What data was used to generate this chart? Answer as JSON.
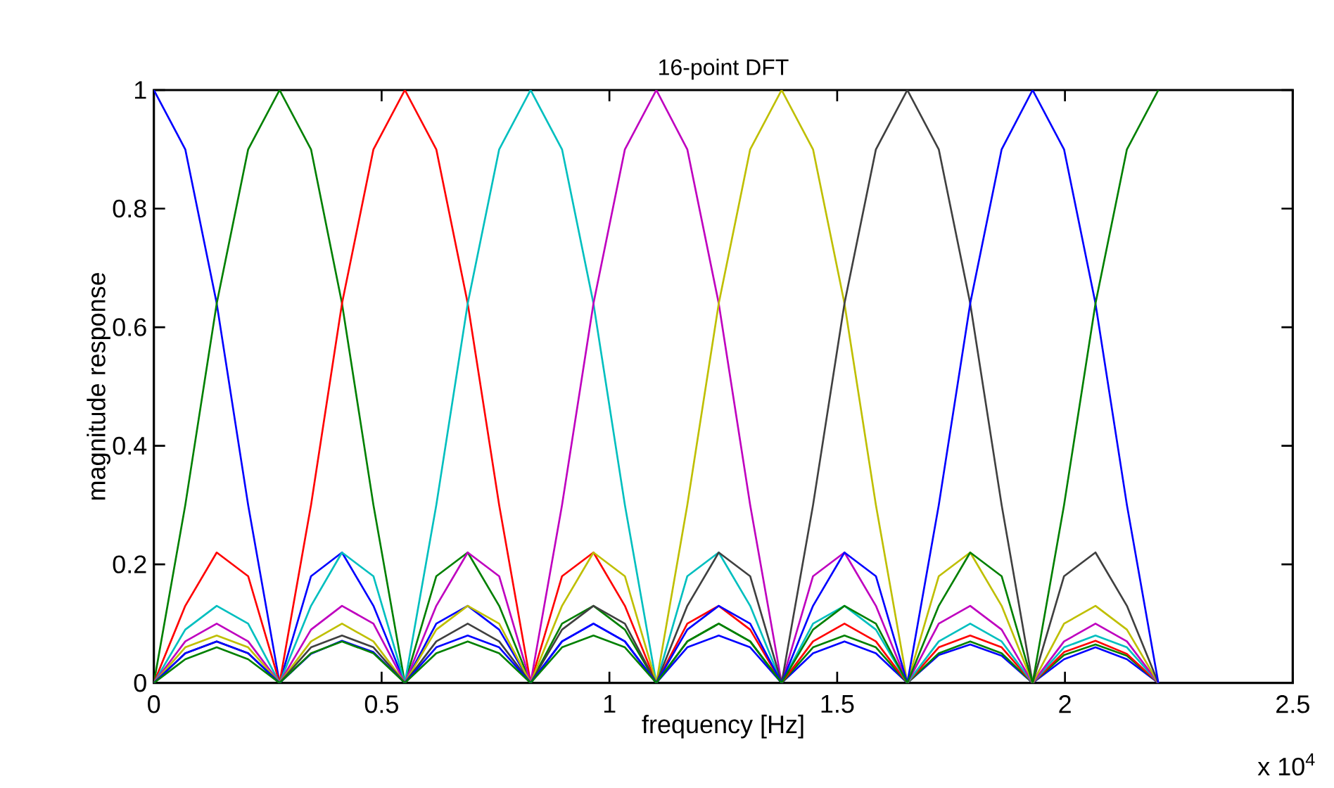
{
  "chart_data": {
    "type": "line",
    "title": "16-point DFT",
    "xlabel": "frequency [Hz]",
    "ylabel": "magnitude response",
    "annotations": [
      "x 10$^{4}$"
    ],
    "x": [
      0,
      0.069,
      0.138,
      0.207,
      0.276,
      0.345,
      0.413,
      0.482,
      0.551,
      0.62,
      0.689,
      0.758,
      0.827,
      0.896,
      0.965,
      1.034,
      1.103,
      1.171,
      1.24,
      1.309,
      1.378,
      1.447,
      1.516,
      1.585,
      1.654,
      1.723,
      1.792,
      1.861,
      1.929,
      1.998,
      2.067,
      2.136,
      2.205
    ],
    "xlim": [
      0,
      2.5
    ],
    "xticks": [
      0,
      0.5,
      1,
      1.5,
      2,
      2.5
    ],
    "ylim": [
      0,
      1
    ],
    "yticks": [
      0,
      0.2,
      0.4,
      0.6,
      0.8,
      1
    ],
    "grid": false,
    "marker": "none",
    "line_style": "solid",
    "series": [
      {
        "color": "#0000ff",
        "values": [
          1,
          0.9,
          0.64,
          0.3,
          0,
          0.18,
          0.22,
          0.13,
          0,
          0.1,
          0.13,
          0.09,
          0,
          0.07,
          0.1,
          0.07,
          0,
          0.06,
          0.08,
          0.06,
          0,
          0.05,
          0.07,
          0.05,
          0,
          0.047,
          0.065,
          0.046,
          0,
          0.04,
          0.06,
          0.04,
          0
        ]
      },
      {
        "color": "#008000",
        "values": [
          0,
          0.3,
          0.64,
          0.9,
          1,
          0.9,
          0.64,
          0.3,
          0,
          0.18,
          0.22,
          0.13,
          0,
          0.1,
          0.13,
          0.09,
          0,
          0.07,
          0.1,
          0.07,
          0,
          0.06,
          0.08,
          0.06,
          0,
          0.05,
          0.07,
          0.05,
          0,
          0.047,
          0.065,
          0.046,
          0
        ]
      },
      {
        "color": "#ff0000",
        "values": [
          0,
          0.13,
          0.22,
          0.18,
          0,
          0.3,
          0.64,
          0.9,
          1,
          0.9,
          0.64,
          0.3,
          0,
          0.18,
          0.22,
          0.13,
          0,
          0.1,
          0.13,
          0.09,
          0,
          0.07,
          0.1,
          0.07,
          0,
          0.06,
          0.08,
          0.06,
          0,
          0.052,
          0.071,
          0.049,
          0
        ]
      },
      {
        "color": "#00bfbf",
        "values": [
          0,
          0.09,
          0.13,
          0.1,
          0,
          0.13,
          0.22,
          0.18,
          0,
          0.3,
          0.64,
          0.9,
          1,
          0.9,
          0.64,
          0.3,
          0,
          0.18,
          0.22,
          0.13,
          0,
          0.1,
          0.13,
          0.09,
          0,
          0.07,
          0.1,
          0.07,
          0,
          0.06,
          0.08,
          0.06,
          0
        ]
      },
      {
        "color": "#bf00bf",
        "values": [
          0,
          0.07,
          0.1,
          0.07,
          0,
          0.09,
          0.13,
          0.1,
          0,
          0.13,
          0.22,
          0.18,
          0,
          0.3,
          0.64,
          0.9,
          1,
          0.9,
          0.64,
          0.3,
          0,
          0.18,
          0.22,
          0.13,
          0,
          0.1,
          0.13,
          0.09,
          0,
          0.07,
          0.1,
          0.07,
          0
        ]
      },
      {
        "color": "#bfbf00",
        "values": [
          0,
          0.06,
          0.08,
          0.06,
          0,
          0.07,
          0.1,
          0.07,
          0,
          0.09,
          0.13,
          0.1,
          0,
          0.13,
          0.22,
          0.18,
          0,
          0.3,
          0.64,
          0.9,
          1,
          0.9,
          0.64,
          0.3,
          0,
          0.18,
          0.22,
          0.13,
          0,
          0.1,
          0.13,
          0.09,
          0
        ]
      },
      {
        "color": "#404040",
        "values": [
          0,
          0.05,
          0.07,
          0.05,
          0,
          0.06,
          0.08,
          0.06,
          0,
          0.07,
          0.1,
          0.07,
          0,
          0.09,
          0.13,
          0.1,
          0,
          0.13,
          0.22,
          0.18,
          0,
          0.3,
          0.64,
          0.9,
          1,
          0.9,
          0.64,
          0.3,
          0,
          0.18,
          0.22,
          0.13,
          0
        ]
      },
      {
        "color": "#0000ff",
        "values": [
          0,
          0.05,
          0.07,
          0.05,
          0,
          0.049,
          0.071,
          0.052,
          0,
          0.06,
          0.08,
          0.06,
          0,
          0.07,
          0.1,
          0.07,
          0,
          0.09,
          0.13,
          0.1,
          0,
          0.13,
          0.22,
          0.18,
          0,
          0.3,
          0.64,
          0.9,
          1,
          0.9,
          0.64,
          0.3,
          0
        ]
      },
      {
        "color": "#008000",
        "values": [
          0,
          0.04,
          0.06,
          0.04,
          0,
          0.05,
          0.07,
          0.05,
          0,
          0.05,
          0.07,
          0.05,
          0,
          0.06,
          0.08,
          0.06,
          0,
          0.07,
          0.1,
          0.07,
          0,
          0.09,
          0.13,
          0.1,
          0,
          0.13,
          0.22,
          0.18,
          0,
          0.3,
          0.64,
          0.9,
          1
        ]
      }
    ]
  }
}
